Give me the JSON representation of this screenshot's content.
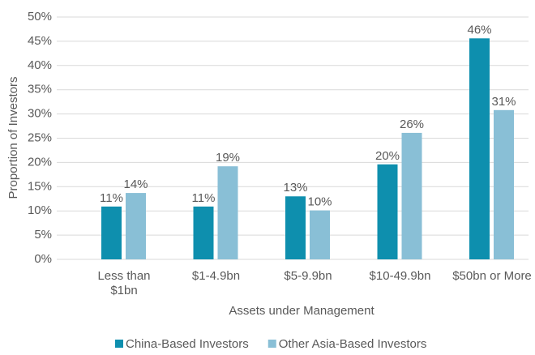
{
  "chart_data": {
    "type": "bar",
    "x_label": "Assets under Management",
    "y_label": "Proportion of Investors",
    "categories": [
      "Less than $1bn",
      "$1-4.9bn",
      "$5-9.9bn",
      "$10-49.9bn",
      "$50bn or More"
    ],
    "series": [
      {
        "name": "China-Based Investors",
        "color": "#0e8fae",
        "values": [
          10.9,
          10.9,
          13.0,
          19.6,
          45.6
        ],
        "value_labels": [
          "11%",
          "11%",
          "13%",
          "20%",
          "46%"
        ]
      },
      {
        "name": "Other Asia-Based Investors",
        "color": "#89bfd6",
        "values": [
          13.7,
          19.2,
          10.1,
          26.1,
          30.8
        ],
        "value_labels": [
          "14%",
          "19%",
          "10%",
          "26%",
          "31%"
        ]
      }
    ],
    "ylim": [
      0,
      50
    ],
    "yticks": [
      {
        "value": 0,
        "label": "0%"
      },
      {
        "value": 5,
        "label": "5%"
      },
      {
        "value": 10,
        "label": "10%"
      },
      {
        "value": 15,
        "label": "15%"
      },
      {
        "value": 20,
        "label": "20%"
      },
      {
        "value": 25,
        "label": "25%"
      },
      {
        "value": 30,
        "label": "30%"
      },
      {
        "value": 35,
        "label": "35%"
      },
      {
        "value": 40,
        "label": "40%"
      },
      {
        "value": 45,
        "label": "45%"
      },
      {
        "value": 50,
        "label": "50%"
      }
    ],
    "grid": true,
    "legend": "bottom"
  }
}
